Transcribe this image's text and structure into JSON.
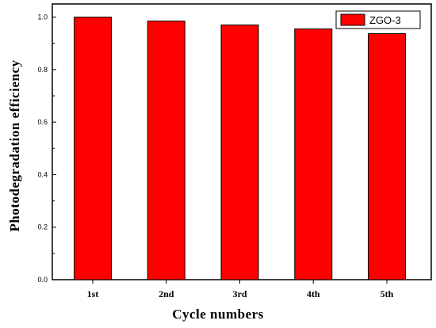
{
  "chart_data": {
    "type": "bar",
    "categories": [
      "1st",
      "2nd",
      "3rd",
      "4th",
      "5th"
    ],
    "series": [
      {
        "name": "ZGO-3",
        "values": [
          1.0,
          0.985,
          0.97,
          0.955,
          0.937
        ]
      }
    ],
    "xlabel": "Cycle numbers",
    "ylabel": "Photodegradation efficiency",
    "ylim": [
      0.0,
      1.05
    ],
    "yticks": [
      "0.0",
      "0.2",
      "0.4",
      "0.6",
      "0.8",
      "1.0"
    ],
    "legend_position": "top-right",
    "grid": false,
    "bar_color": "#ff0000",
    "bar_edge_color": "#000000"
  }
}
